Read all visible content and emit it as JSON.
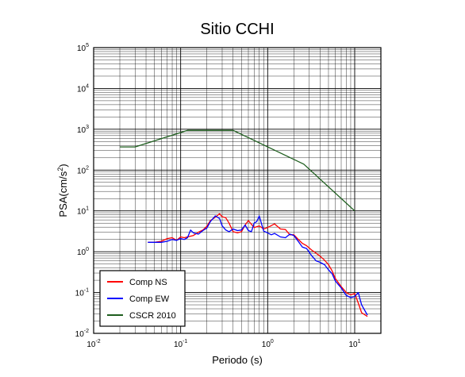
{
  "chart_data": {
    "type": "line",
    "title": "Sitio CCHI",
    "xlabel": "Periodo (s)",
    "ylabel_base": "PSA(cm/s",
    "ylabel_exp": "2",
    "ylabel_tail": ")",
    "x_scale": "log",
    "y_scale": "log",
    "xlim": [
      0.01,
      20
    ],
    "ylim": [
      0.01,
      100000
    ],
    "grid": true,
    "legend_placement": "bottom-left",
    "x_ticks": [
      {
        "value": 0.01,
        "base": "10",
        "exp": "-2"
      },
      {
        "value": 0.1,
        "base": "10",
        "exp": "-1"
      },
      {
        "value": 1,
        "base": "10",
        "exp": "0"
      },
      {
        "value": 10,
        "base": "10",
        "exp": "1"
      }
    ],
    "y_ticks": [
      {
        "value": 0.01,
        "base": "10",
        "exp": "-2"
      },
      {
        "value": 0.1,
        "base": "10",
        "exp": "-1"
      },
      {
        "value": 1,
        "base": "10",
        "exp": "0"
      },
      {
        "value": 10,
        "base": "10",
        "exp": "1"
      },
      {
        "value": 100,
        "base": "10",
        "exp": "2"
      },
      {
        "value": 1000,
        "base": "10",
        "exp": "3"
      },
      {
        "value": 10000,
        "base": "10",
        "exp": "4"
      },
      {
        "value": 100000,
        "base": "10",
        "exp": "5"
      }
    ],
    "series": [
      {
        "name": "Comp NS",
        "color": "#ff0000",
        "x": [
          0.042,
          0.05,
          0.06,
          0.07,
          0.08,
          0.09,
          0.1,
          0.11,
          0.12,
          0.14,
          0.16,
          0.18,
          0.2,
          0.22,
          0.25,
          0.28,
          0.3,
          0.33,
          0.36,
          0.4,
          0.45,
          0.5,
          0.55,
          0.6,
          0.65,
          0.7,
          0.8,
          0.9,
          1.0,
          1.2,
          1.4,
          1.6,
          1.8,
          2.0,
          2.2,
          2.5,
          2.8,
          3.2,
          3.6,
          4.0,
          4.5,
          5.0,
          5.5,
          6.0,
          7.0,
          8.0,
          9.0,
          10.0,
          11.0,
          12.0,
          14.0
        ],
        "y": [
          1.7,
          1.7,
          1.8,
          2.1,
          2.2,
          1.9,
          2.3,
          2.2,
          2.3,
          2.5,
          3.0,
          3.4,
          4.2,
          5.8,
          7.0,
          8.5,
          7.2,
          6.8,
          5.0,
          3.1,
          2.9,
          3.1,
          4.5,
          5.8,
          4.7,
          3.9,
          4.3,
          3.6,
          3.9,
          4.8,
          3.6,
          3.5,
          2.6,
          2.6,
          2.1,
          1.6,
          1.4,
          1.1,
          0.92,
          0.78,
          0.62,
          0.48,
          0.34,
          0.22,
          0.14,
          0.1,
          0.088,
          0.095,
          0.055,
          0.032,
          0.026
        ]
      },
      {
        "name": "Comp EW",
        "color": "#0000ff",
        "x": [
          0.042,
          0.05,
          0.06,
          0.07,
          0.08,
          0.09,
          0.1,
          0.11,
          0.12,
          0.13,
          0.14,
          0.16,
          0.18,
          0.2,
          0.22,
          0.25,
          0.28,
          0.3,
          0.33,
          0.36,
          0.4,
          0.45,
          0.5,
          0.55,
          0.6,
          0.65,
          0.7,
          0.75,
          0.8,
          0.9,
          1.0,
          1.1,
          1.2,
          1.4,
          1.6,
          1.8,
          2.0,
          2.2,
          2.5,
          2.8,
          3.2,
          3.6,
          4.0,
          4.5,
          5.0,
          5.5,
          6.0,
          7.0,
          8.0,
          9.0,
          10.0,
          11.0,
          12.0,
          14.0
        ],
        "y": [
          1.7,
          1.7,
          1.7,
          1.8,
          2.0,
          1.9,
          2.1,
          2.0,
          2.2,
          3.4,
          2.9,
          2.7,
          3.3,
          3.8,
          5.5,
          7.5,
          6.5,
          4.3,
          3.4,
          3.1,
          3.6,
          3.3,
          3.4,
          4.5,
          3.3,
          3.1,
          5.0,
          5.5,
          7.5,
          3.2,
          2.9,
          2.6,
          2.8,
          2.3,
          2.2,
          2.7,
          2.5,
          1.9,
          1.3,
          1.2,
          0.8,
          0.6,
          0.55,
          0.48,
          0.36,
          0.29,
          0.19,
          0.13,
          0.085,
          0.075,
          0.08,
          0.1,
          0.05,
          0.028
        ]
      },
      {
        "name": "CSCR 2010",
        "color": "#1e5e1e",
        "x": [
          0.02,
          0.03,
          0.12,
          0.4,
          2.6,
          10.0
        ],
        "y": [
          370,
          370,
          940,
          940,
          140,
          10
        ]
      }
    ]
  }
}
